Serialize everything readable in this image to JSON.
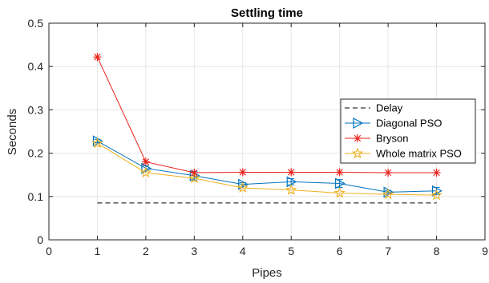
{
  "chart_data": {
    "type": "line",
    "title": "Settling time",
    "xlabel": "Pipes",
    "ylabel": "Seconds",
    "xlim": [
      0,
      9
    ],
    "ylim": [
      0,
      0.5
    ],
    "xticks": [
      "0",
      "1",
      "2",
      "3",
      "4",
      "5",
      "6",
      "7",
      "8",
      "9"
    ],
    "yticks": [
      "0",
      "0.1",
      "0.2",
      "0.3",
      "0.4",
      "0.5"
    ],
    "grid": true,
    "legend_position": "right",
    "x": [
      1,
      2,
      3,
      4,
      5,
      6,
      7,
      8
    ],
    "series": [
      {
        "name": "Delay",
        "style": "dashed",
        "color": "#000000",
        "marker": "none",
        "x": [
          1,
          8
        ],
        "values": [
          0.085,
          0.085
        ]
      },
      {
        "name": "Diagonal PSO",
        "style": "solid",
        "color": "#0072BD",
        "marker": "triangle-right",
        "values": [
          0.228,
          0.165,
          0.148,
          0.128,
          0.134,
          0.13,
          0.11,
          0.113
        ],
        "error": [
          0.004,
          0.006,
          0.01,
          0.004,
          0.007,
          0.009,
          0.004,
          0.008
        ]
      },
      {
        "name": "Bryson",
        "style": "solid",
        "color": "#E8201A",
        "marker": "asterisk",
        "values": [
          0.422,
          0.18,
          0.155,
          0.156,
          0.156,
          0.156,
          0.155,
          0.155
        ]
      },
      {
        "name": "Whole matrix PSO",
        "style": "solid",
        "color": "#EDB120",
        "marker": "pentagram",
        "values": [
          0.223,
          0.155,
          0.142,
          0.12,
          0.115,
          0.108,
          0.105,
          0.103
        ]
      }
    ]
  }
}
